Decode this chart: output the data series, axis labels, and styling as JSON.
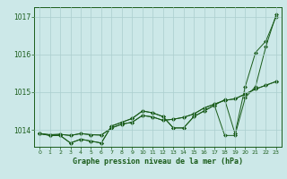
{
  "bg_color": "#cce8e8",
  "grid_color": "#aacece",
  "line_color": "#1a5c1a",
  "title": "Graphe pression niveau de la mer (hPa)",
  "ylabel_values": [
    1014,
    1015,
    1016,
    1017
  ],
  "xlim": [
    -0.5,
    23.5
  ],
  "ylim": [
    1013.55,
    1017.25
  ],
  "xticks": [
    0,
    1,
    2,
    3,
    4,
    5,
    6,
    7,
    8,
    9,
    10,
    11,
    12,
    13,
    14,
    15,
    16,
    17,
    18,
    19,
    20,
    21,
    22,
    23
  ],
  "line_a": [
    1013.9,
    1013.85,
    1013.85,
    1013.65,
    1013.75,
    1013.7,
    1013.65,
    1014.1,
    1014.2,
    1014.3,
    1014.5,
    1014.45,
    1014.35,
    1014.05,
    1014.05,
    1014.35,
    1014.5,
    1014.65,
    1013.85,
    1013.85,
    1014.85,
    1015.15,
    1016.2,
    1017.05
  ],
  "line_b": [
    1013.9,
    1013.85,
    1013.85,
    1013.65,
    1013.75,
    1013.7,
    1013.65,
    1014.1,
    1014.2,
    1014.3,
    1014.5,
    1014.45,
    1014.35,
    1014.05,
    1014.05,
    1014.35,
    1014.5,
    1014.65,
    1014.8,
    1013.9,
    1015.15,
    1016.05,
    1016.35,
    1017.0
  ],
  "line_c": [
    1013.9,
    1013.87,
    1013.88,
    1013.85,
    1013.9,
    1013.87,
    1013.86,
    1014.05,
    1014.15,
    1014.2,
    1014.38,
    1014.34,
    1014.25,
    1014.28,
    1014.33,
    1014.42,
    1014.58,
    1014.68,
    1014.78,
    1014.82,
    1014.95,
    1015.08,
    1015.18,
    1015.28
  ],
  "line_d": [
    1013.9,
    1013.87,
    1013.88,
    1013.85,
    1013.9,
    1013.87,
    1013.86,
    1014.05,
    1014.15,
    1014.2,
    1014.38,
    1014.34,
    1014.25,
    1014.28,
    1014.33,
    1014.42,
    1014.58,
    1014.68,
    1014.78,
    1014.82,
    1014.95,
    1015.08,
    1015.18,
    1015.28
  ]
}
